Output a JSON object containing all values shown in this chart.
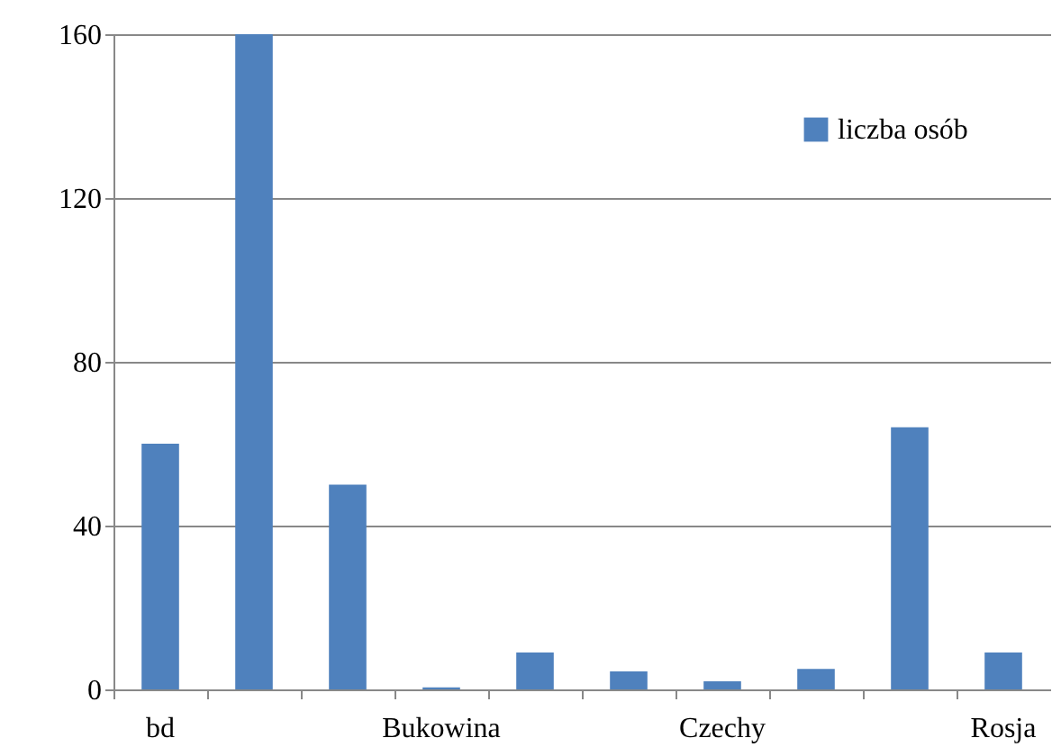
{
  "chart_data": {
    "type": "bar",
    "categories": [
      "bd",
      null,
      null,
      "Bukowina",
      null,
      null,
      "Czechy",
      null,
      null,
      "Rosja"
    ],
    "series": [
      {
        "name": "liczba osób",
        "color": "#4f81bd",
        "values": [
          60,
          160,
          50,
          0.5,
          9,
          4.4,
          2,
          5,
          64,
          9
        ]
      }
    ],
    "ylim": [
      0,
      160
    ],
    "yticks": [
      0,
      40,
      80,
      120,
      160
    ],
    "grid": "y",
    "legend": "top right"
  }
}
